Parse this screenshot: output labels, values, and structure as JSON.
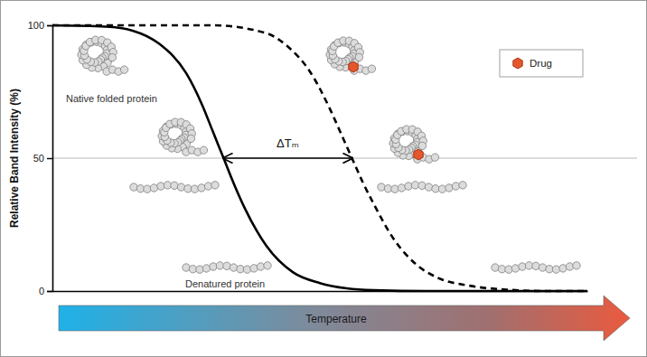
{
  "chart_data": {
    "type": "line",
    "y_label": "Relative Band Intensity (%)",
    "x_label": "Temperature",
    "xlim": [
      0,
      100
    ],
    "ylim": [
      0,
      100
    ],
    "yticks": [
      0,
      50,
      100
    ],
    "grid": true,
    "tick_labels": "y",
    "legend": "upper right",
    "series": [
      {
        "color": "#000000",
        "line_style": "solid",
        "x": [
          0,
          10,
          15,
          20,
          25,
          28,
          30,
          32,
          34,
          36,
          40,
          45,
          50,
          55,
          60,
          70,
          80,
          100
        ],
        "values": [
          100,
          99.5,
          98,
          93,
          82,
          70,
          60,
          50,
          40,
          31,
          17,
          7,
          3,
          1,
          0.3,
          0,
          0,
          0
        ]
      },
      {
        "color": "#000000",
        "line_style": "dashed",
        "x": [
          0,
          30,
          40,
          44,
          48,
          52,
          54,
          56,
          58,
          60,
          64,
          68,
          72,
          78,
          85,
          92,
          100
        ],
        "values": [
          100,
          100,
          97,
          92,
          83,
          68,
          59,
          50,
          41,
          33,
          19,
          10,
          5,
          2,
          0.5,
          0,
          0
        ]
      }
    ],
    "delta_tm": {
      "label": "ΔTₘ",
      "x": [
        32,
        56
      ],
      "y": 50
    },
    "annotations": {
      "native": "Native folded protein",
      "denatured": "Denatured protein",
      "drug": "Drug"
    }
  }
}
